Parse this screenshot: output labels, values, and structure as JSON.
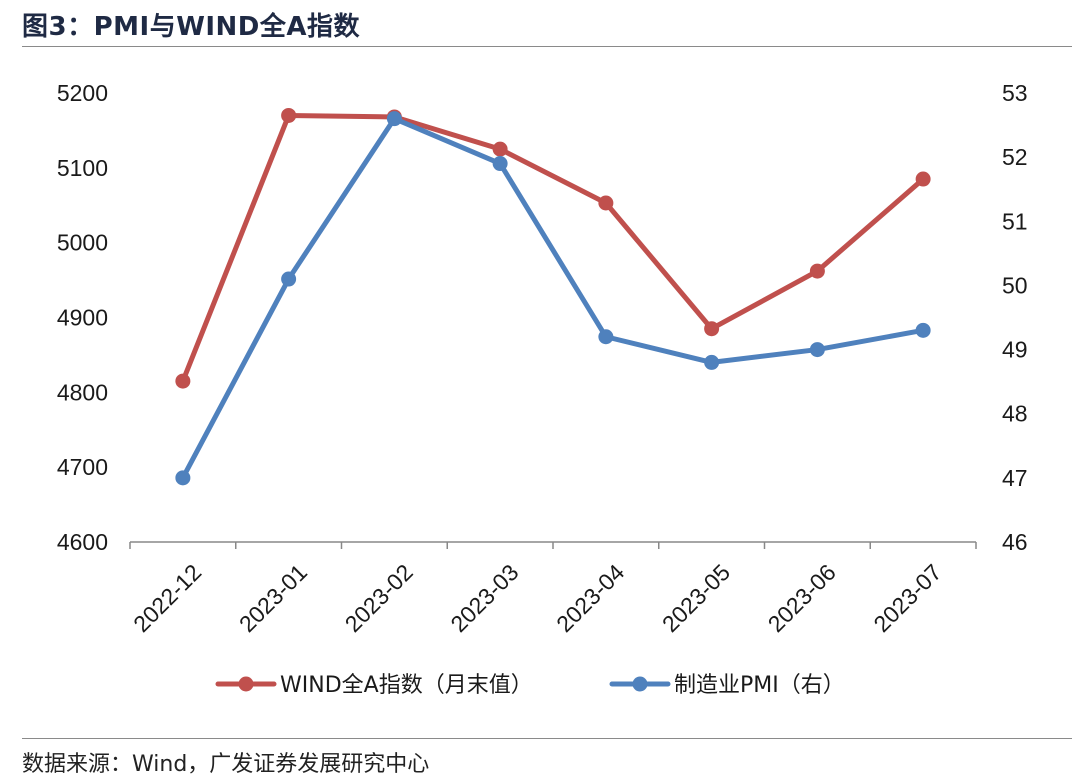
{
  "header": {
    "title": "图3：PMI与WIND全A指数"
  },
  "footer": {
    "source": "数据来源：Wind，广发证券发展研究中心"
  },
  "colors": {
    "wind": "#c0504d",
    "pmi": "#4f81bd",
    "axis": "#888888"
  },
  "chart_data": {
    "type": "line",
    "title": "",
    "categories": [
      "2022-12",
      "2023-01",
      "2023-02",
      "2023-03",
      "2023-04",
      "2023-05",
      "2023-06",
      "2023-07"
    ],
    "y_left": {
      "min": 4600,
      "max": 5200,
      "ticks": [
        "4600",
        "4700",
        "4800",
        "4900",
        "5000",
        "5100",
        "5200"
      ]
    },
    "y_right": {
      "min": 46,
      "max": 53,
      "ticks": [
        "46",
        "47",
        "48",
        "49",
        "50",
        "51",
        "52",
        "53"
      ]
    },
    "grid": false,
    "legend_position": "bottom",
    "series": [
      {
        "name": "WIND全A指数（月末值）",
        "axis": "left",
        "color": "#c0504d",
        "values": [
          4815,
          5170,
          5168,
          5125,
          5053,
          4885,
          4962,
          5085
        ]
      },
      {
        "name": "制造业PMI（右）",
        "axis": "right",
        "color": "#4f81bd",
        "values": [
          47.0,
          50.1,
          52.6,
          51.9,
          49.2,
          48.8,
          49.0,
          49.3
        ]
      }
    ]
  }
}
